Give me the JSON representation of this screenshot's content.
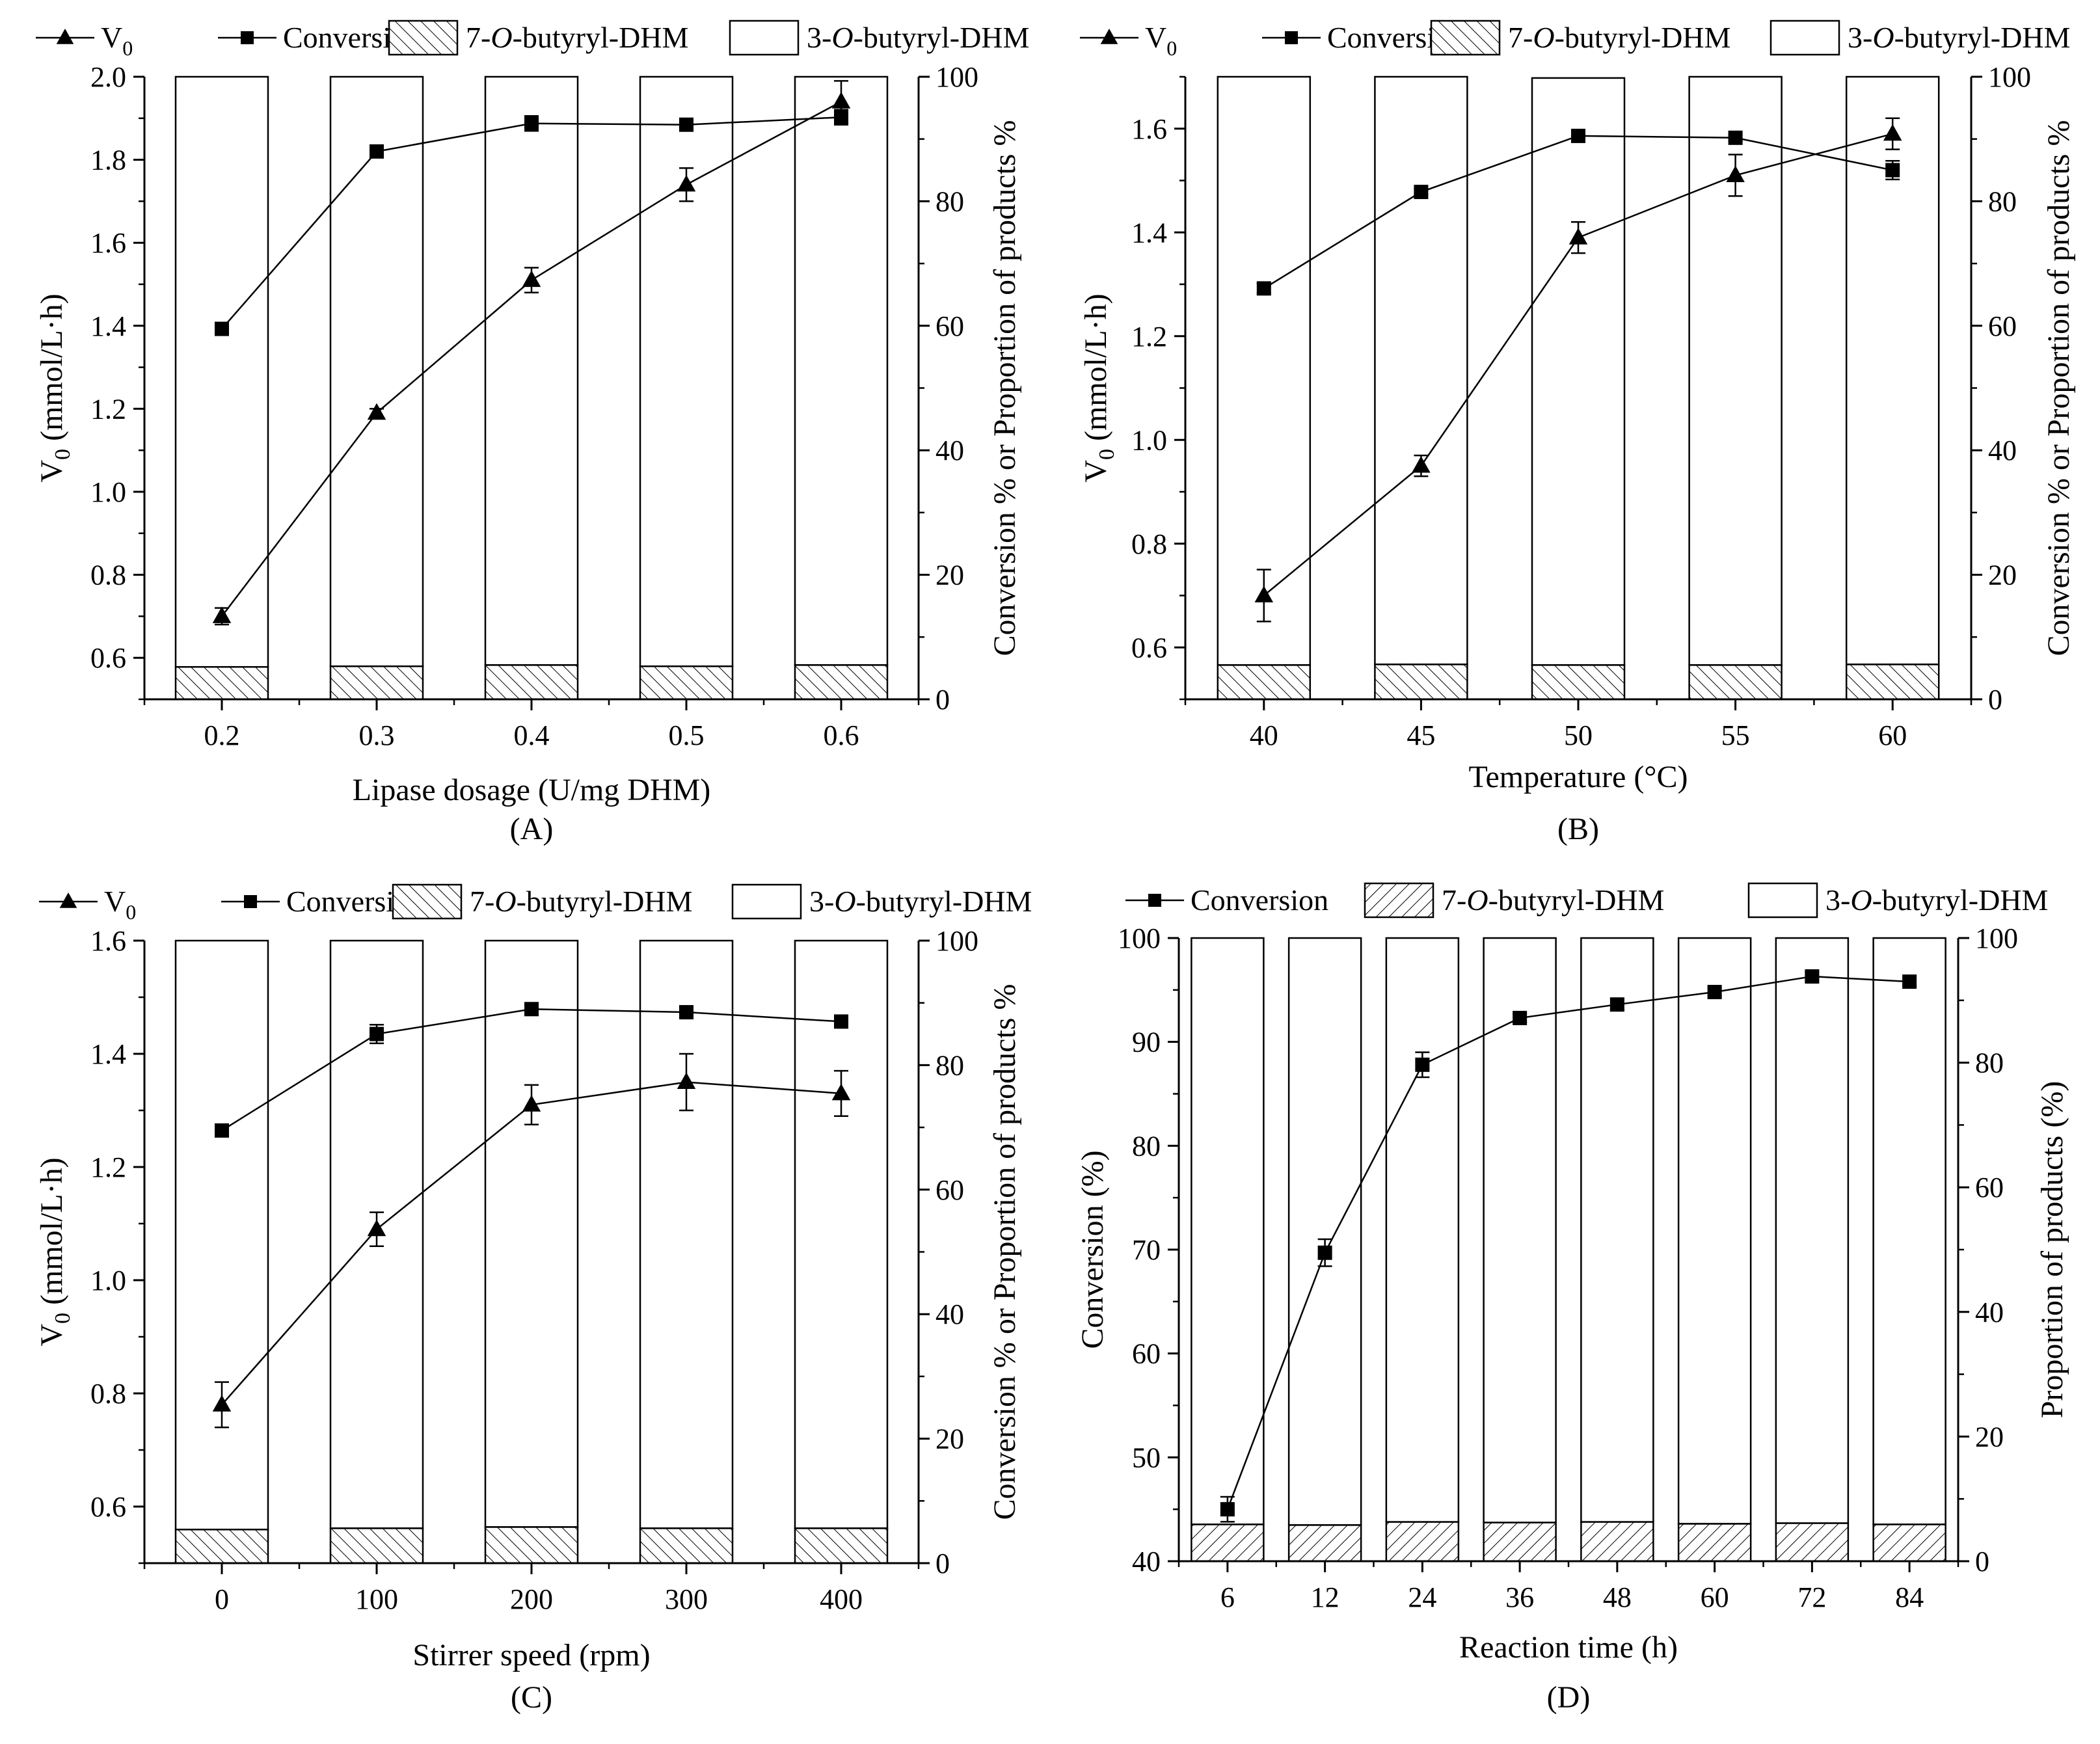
{
  "figure": {
    "panels": [
      "A",
      "B",
      "C",
      "D"
    ],
    "colors": {
      "ink": "#000000",
      "bar_fill": "#ffffff",
      "background": "#ffffff"
    }
  },
  "chart_data": [
    {
      "id": "A",
      "panel_label": "(A)",
      "type": "bar+line",
      "xlabel": "Lipase dosage (U/mg DHM)",
      "ylabel_left": "V0 (mmol/L·h)",
      "ylabel_left_main": "V",
      "ylabel_left_sub": "0",
      "ylabel_left_rest": " (mmol/L·h)",
      "ylabel_right": "Conversion % or Proportion of products %",
      "categories": [
        "0.2",
        "0.3",
        "0.4",
        "0.5",
        "0.6"
      ],
      "left_axis": {
        "min": 0.5,
        "max": 2.0,
        "ticks": [
          "0.6",
          "0.8",
          "1.0",
          "1.2",
          "1.4",
          "1.6",
          "1.8",
          "2.0"
        ],
        "tick_values": [
          0.6,
          0.8,
          1.0,
          1.2,
          1.4,
          1.6,
          1.8,
          2.0
        ]
      },
      "right_axis": {
        "min": 0,
        "max": 100,
        "ticks": [
          "0",
          "20",
          "40",
          "60",
          "80",
          "100"
        ],
        "tick_values": [
          0,
          20,
          40,
          60,
          80,
          100
        ]
      },
      "legend": [
        {
          "kind": "triangle-line",
          "label": "V",
          "sub": "0"
        },
        {
          "kind": "square-line",
          "label": "Conversion"
        },
        {
          "kind": "hatch",
          "label_pre": "7-",
          "label_it": "O",
          "label_post": "-butyryl-DHM"
        },
        {
          "kind": "open",
          "label_pre": "3-",
          "label_it": "O",
          "label_post": "-butyryl-DHM"
        }
      ],
      "bars": {
        "stack_7": [
          5.2,
          5.3,
          5.5,
          5.3,
          5.5
        ],
        "stack_3": [
          94.8,
          94.7,
          94.5,
          94.7,
          94.5
        ]
      },
      "series": [
        {
          "name": "V0",
          "axis": "left",
          "marker": "triangle",
          "values": [
            0.7,
            1.19,
            1.51,
            1.74,
            1.94
          ],
          "errors": [
            0.02,
            0.01,
            0.03,
            0.04,
            0.05
          ]
        },
        {
          "name": "Conversion",
          "axis": "right",
          "marker": "square",
          "values": [
            59.5,
            88.0,
            92.5,
            92.3,
            93.5
          ],
          "errors": [
            1.0,
            0.4,
            1.2,
            0.5,
            1.2
          ]
        }
      ]
    },
    {
      "id": "B",
      "panel_label": "(B)",
      "type": "bar+line",
      "xlabel": "Temperature (°C)",
      "ylabel_left": "V0 (mmol/L·h)",
      "ylabel_left_main": "V",
      "ylabel_left_sub": "0",
      "ylabel_left_rest": " (mmol/L·h)",
      "ylabel_right": "Conversion % or Proportion of products %",
      "categories": [
        "40",
        "45",
        "50",
        "55",
        "60"
      ],
      "left_axis": {
        "min": 0.5,
        "max": 1.7,
        "ticks": [
          "0.6",
          "0.8",
          "1.0",
          "1.2",
          "1.4",
          "1.6"
        ],
        "tick_values": [
          0.6,
          0.8,
          1.0,
          1.2,
          1.4,
          1.6
        ]
      },
      "right_axis": {
        "min": 0,
        "max": 100,
        "ticks": [
          "0",
          "20",
          "40",
          "60",
          "80",
          "100"
        ],
        "tick_values": [
          0,
          20,
          40,
          60,
          80,
          100
        ]
      },
      "legend": [
        {
          "kind": "triangle-line",
          "label": "V",
          "sub": "0"
        },
        {
          "kind": "square-line",
          "label": "Conversion"
        },
        {
          "kind": "hatch",
          "label_pre": "7-",
          "label_it": "O",
          "label_post": "-butyryl-DHM"
        },
        {
          "kind": "open",
          "label_pre": "3-",
          "label_it": "O",
          "label_post": "-butyryl-DHM"
        }
      ],
      "bars": {
        "stack_7": [
          5.5,
          5.6,
          5.5,
          5.5,
          5.6
        ],
        "stack_3": [
          94.5,
          94.4,
          94.3,
          94.5,
          94.4
        ]
      },
      "series": [
        {
          "name": "V0",
          "axis": "left",
          "marker": "triangle",
          "values": [
            0.7,
            0.95,
            1.39,
            1.51,
            1.59
          ],
          "errors": [
            0.05,
            0.02,
            0.03,
            0.04,
            0.03
          ]
        },
        {
          "name": "Conversion",
          "axis": "right",
          "marker": "square",
          "values": [
            66.0,
            81.5,
            90.5,
            90.2,
            85.0
          ],
          "errors": [
            0.8,
            0.5,
            0.5,
            0.5,
            1.5
          ]
        }
      ]
    },
    {
      "id": "C",
      "panel_label": "(C)",
      "type": "bar+line",
      "xlabel": "Stirrer speed (rpm)",
      "ylabel_left": "V0 (mmol/L·h)",
      "ylabel_left_main": "V",
      "ylabel_left_sub": "0",
      "ylabel_left_rest": " (mmol/L·h)",
      "ylabel_right": "Conversion % or Proportion of products %",
      "categories": [
        "0",
        "100",
        "200",
        "300",
        "400"
      ],
      "left_axis": {
        "min": 0.5,
        "max": 1.6,
        "ticks": [
          "0.6",
          "0.8",
          "1.0",
          "1.2",
          "1.4",
          "1.6"
        ],
        "tick_values": [
          0.6,
          0.8,
          1.0,
          1.2,
          1.4,
          1.6
        ]
      },
      "right_axis": {
        "min": 0,
        "max": 100,
        "ticks": [
          "0",
          "20",
          "40",
          "60",
          "80",
          "100"
        ],
        "tick_values": [
          0,
          20,
          40,
          60,
          80,
          100
        ]
      },
      "legend": [
        {
          "kind": "triangle-line",
          "label": "V",
          "sub": "0"
        },
        {
          "kind": "square-line",
          "label": "Conversion"
        },
        {
          "kind": "hatch",
          "label_pre": "7-",
          "label_it": "O",
          "label_post": "-butyryl-DHM"
        },
        {
          "kind": "open",
          "label_pre": "3-",
          "label_it": "O",
          "label_post": "-butyryl-DHM"
        }
      ],
      "bars": {
        "stack_7": [
          5.4,
          5.6,
          5.8,
          5.6,
          5.6
        ],
        "stack_3": [
          94.6,
          94.4,
          94.2,
          94.4,
          94.4
        ]
      },
      "series": [
        {
          "name": "V0",
          "axis": "left",
          "marker": "triangle",
          "values": [
            0.78,
            1.09,
            1.31,
            1.35,
            1.33
          ],
          "errors": [
            0.04,
            0.03,
            0.035,
            0.05,
            0.04
          ]
        },
        {
          "name": "Conversion",
          "axis": "right",
          "marker": "square",
          "values": [
            69.5,
            85.0,
            89.0,
            88.5,
            87.0
          ],
          "errors": [
            0.8,
            1.5,
            0.5,
            0.5,
            0.5
          ]
        }
      ]
    },
    {
      "id": "D",
      "panel_label": "(D)",
      "type": "bar+line",
      "xlabel": "Reaction time (h)",
      "ylabel_left": "Conversion (%)",
      "ylabel_right": "Proportion of products (%)",
      "categories": [
        "6",
        "12",
        "24",
        "36",
        "48",
        "60",
        "72",
        "84"
      ],
      "left_axis": {
        "min": 40,
        "max": 100,
        "ticks": [
          "40",
          "50",
          "60",
          "70",
          "80",
          "90",
          "100"
        ],
        "tick_values": [
          40,
          50,
          60,
          70,
          80,
          90,
          100
        ]
      },
      "right_axis": {
        "min": 0,
        "max": 100,
        "ticks": [
          "0",
          "20",
          "40",
          "60",
          "80",
          "100"
        ],
        "tick_values": [
          0,
          20,
          40,
          60,
          80,
          100
        ]
      },
      "legend": [
        {
          "kind": "square-line",
          "label": "Conversion"
        },
        {
          "kind": "hatch-back",
          "label_pre": "7-",
          "label_it": "O",
          "label_post": "-butyryl-DHM"
        },
        {
          "kind": "open",
          "label_pre": "3-",
          "label_it": "O",
          "label_post": "-butyryl-DHM"
        }
      ],
      "bars": {
        "stack_7": [
          5.9,
          5.8,
          6.3,
          6.2,
          6.3,
          6.0,
          6.1,
          5.9
        ],
        "stack_3": [
          94.1,
          94.2,
          93.7,
          93.8,
          93.7,
          94.0,
          93.9,
          94.1
        ]
      },
      "series": [
        {
          "name": "Conversion",
          "axis": "left",
          "marker": "square",
          "values": [
            45.0,
            69.7,
            87.8,
            92.3,
            93.6,
            94.8,
            96.3,
            95.8
          ],
          "errors": [
            1.2,
            1.3,
            1.2,
            0.4,
            0.5,
            0.4,
            0.4,
            0.4
          ]
        }
      ]
    }
  ]
}
